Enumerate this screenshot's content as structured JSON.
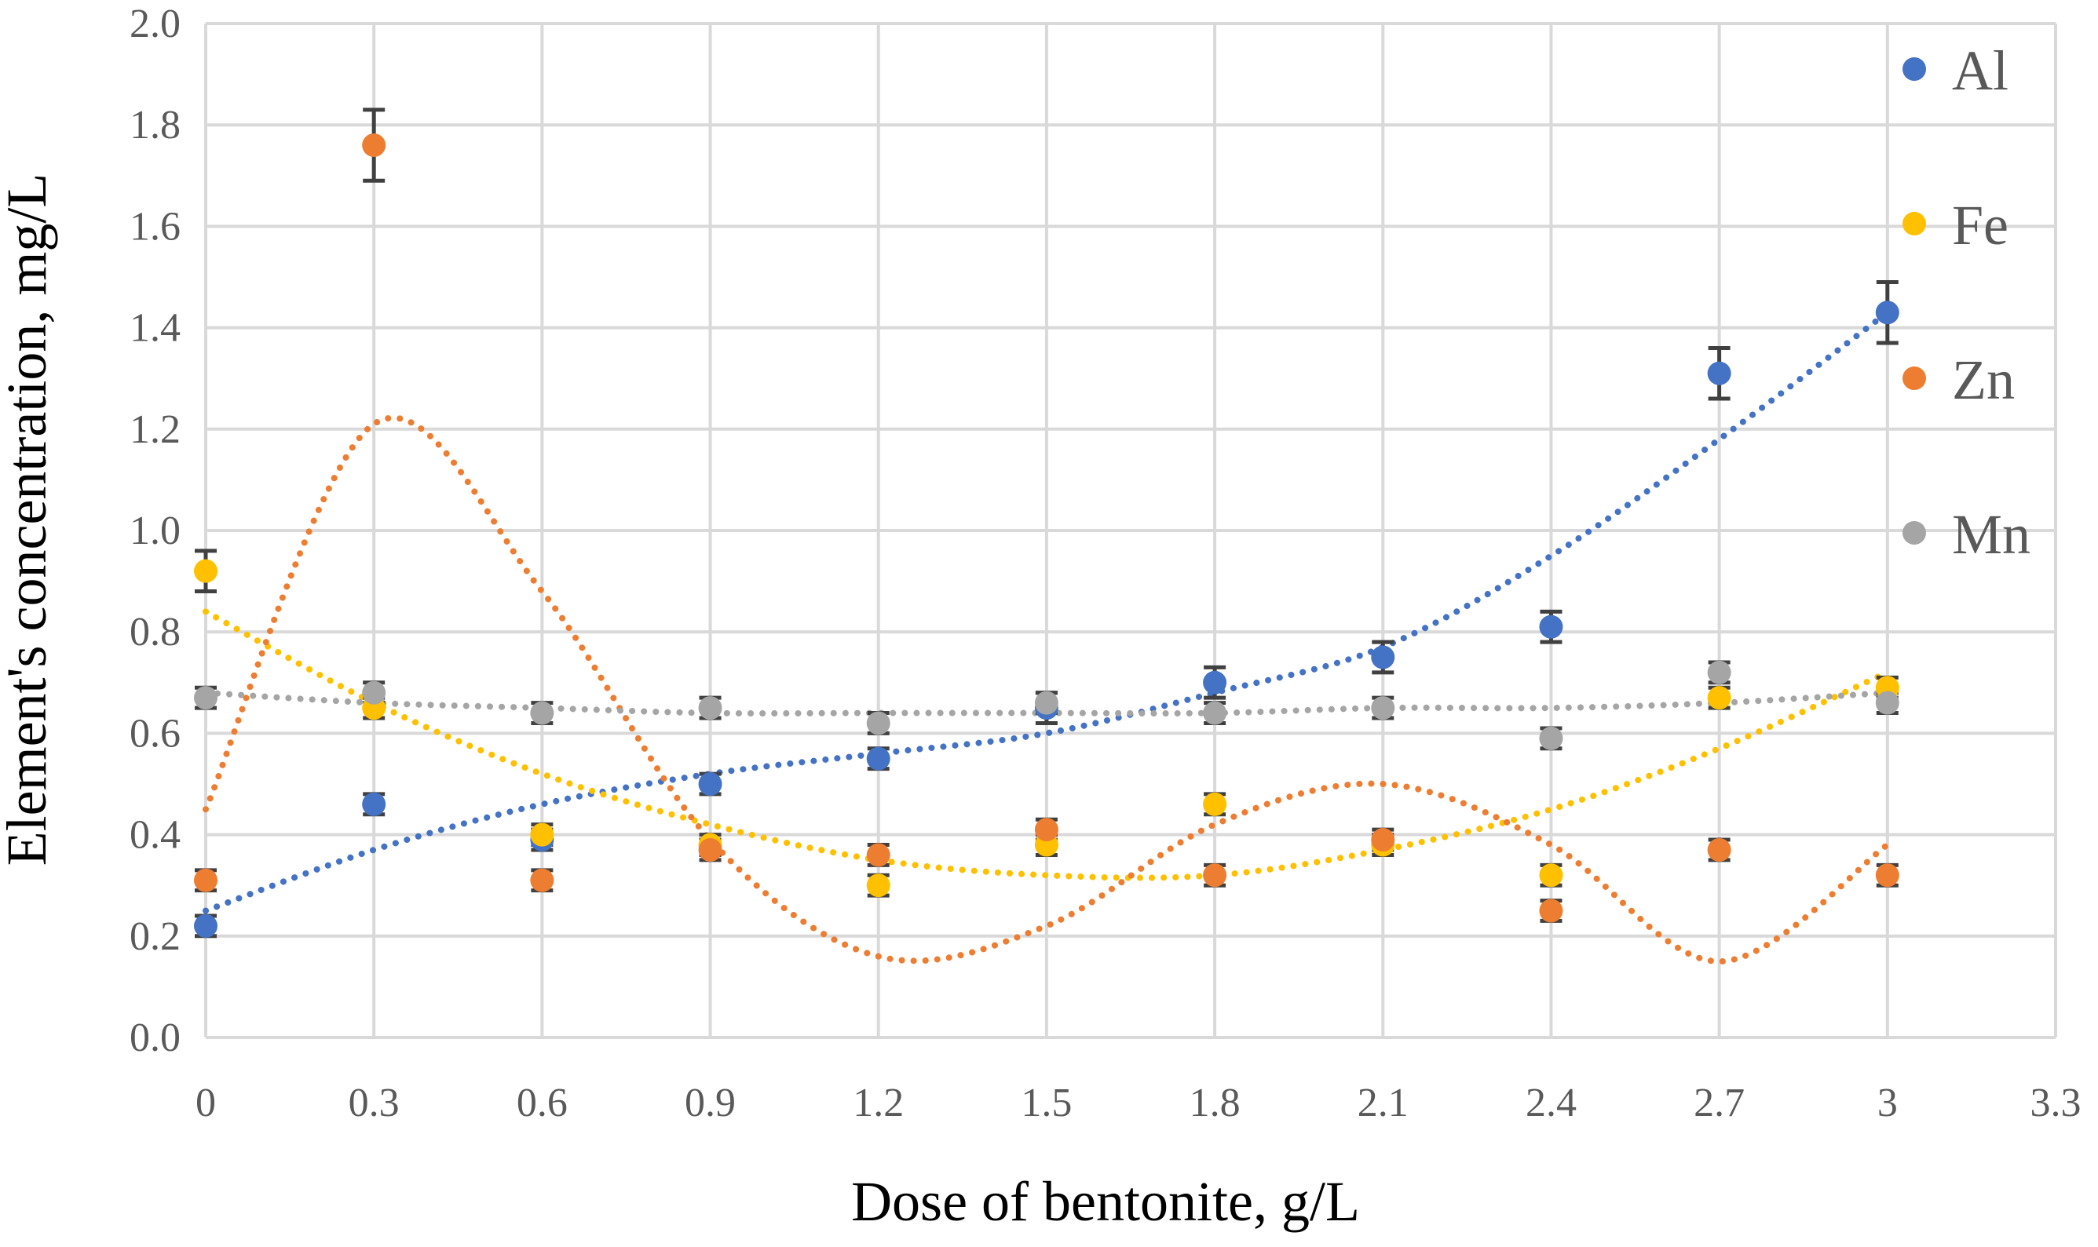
{
  "chart_data": {
    "type": "scatter",
    "title": "",
    "xlabel": "Dose of bentonite, g/L",
    "ylabel": "Element's concentration, mg/L",
    "xlim": [
      0,
      3.3
    ],
    "ylim": [
      0,
      2.0
    ],
    "x_ticks": [
      "0",
      "0.3",
      "0.6",
      "0.9",
      "1.2",
      "1.5",
      "1.8",
      "2.1",
      "2.4",
      "2.7",
      "3",
      "3.3"
    ],
    "y_ticks": [
      "0.0",
      "0.2",
      "0.4",
      "0.6",
      "0.8",
      "1.0",
      "1.2",
      "1.4",
      "1.6",
      "1.8",
      "2.0"
    ],
    "grid": true,
    "legend_position": "right",
    "x": [
      0,
      0.3,
      0.6,
      0.9,
      1.2,
      1.5,
      1.8,
      2.1,
      2.4,
      2.7,
      3.0
    ],
    "series": [
      {
        "name": "Al",
        "color": "#4472c4",
        "values": [
          0.22,
          0.46,
          0.39,
          0.5,
          0.55,
          0.65,
          0.7,
          0.75,
          0.81,
          1.31,
          1.43
        ],
        "errors": [
          0.02,
          0.02,
          0.02,
          0.02,
          0.02,
          0.03,
          0.03,
          0.03,
          0.03,
          0.05,
          0.06
        ],
        "trendline": [
          0.25,
          0.37,
          0.46,
          0.52,
          0.56,
          0.6,
          0.68,
          0.77,
          0.95,
          1.18,
          1.43
        ]
      },
      {
        "name": "Fe",
        "color": "#ffc000",
        "values": [
          0.92,
          0.65,
          0.4,
          0.38,
          0.3,
          0.38,
          0.46,
          0.38,
          0.32,
          0.67,
          0.69
        ],
        "errors": [
          0.04,
          0.02,
          0.02,
          0.02,
          0.02,
          0.02,
          0.02,
          0.02,
          0.02,
          0.02,
          0.02
        ],
        "trendline": [
          0.84,
          0.66,
          0.52,
          0.42,
          0.35,
          0.32,
          0.32,
          0.37,
          0.45,
          0.57,
          0.72
        ]
      },
      {
        "name": "Zn",
        "color": "#ed7d31",
        "values": [
          0.31,
          1.76,
          0.31,
          0.37,
          0.36,
          0.41,
          0.32,
          0.39,
          0.25,
          0.37,
          0.32
        ],
        "errors": [
          0.02,
          0.07,
          0.02,
          0.02,
          0.02,
          0.02,
          0.02,
          0.02,
          0.02,
          0.02,
          0.02
        ],
        "trendline": [
          0.45,
          1.21,
          0.88,
          0.39,
          0.16,
          0.22,
          0.42,
          0.5,
          0.38,
          0.15,
          0.38
        ]
      },
      {
        "name": "Mn",
        "color": "#a5a5a5",
        "values": [
          0.67,
          0.68,
          0.64,
          0.65,
          0.62,
          0.66,
          0.64,
          0.65,
          0.59,
          0.72,
          0.66
        ],
        "errors": [
          0.02,
          0.02,
          0.02,
          0.02,
          0.02,
          0.02,
          0.02,
          0.02,
          0.02,
          0.02,
          0.02
        ],
        "trendline": [
          0.68,
          0.66,
          0.65,
          0.64,
          0.64,
          0.64,
          0.64,
          0.65,
          0.65,
          0.66,
          0.68
        ]
      }
    ]
  }
}
